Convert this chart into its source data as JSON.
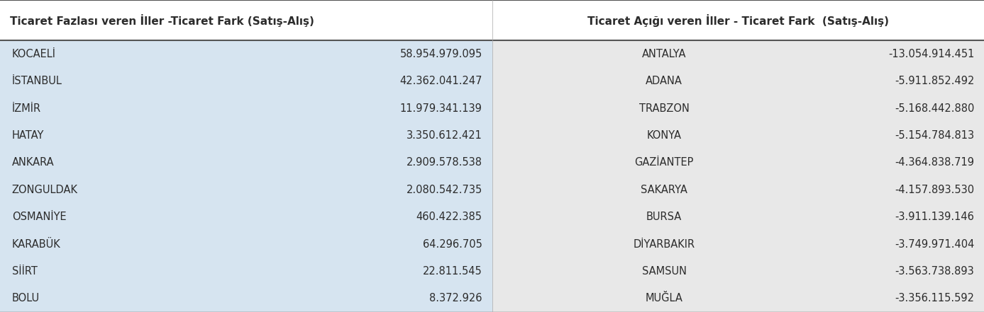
{
  "left_header": "Ticaret Fazlası veren İller -Ticaret Fark (Satış-Alış)",
  "right_header": "Ticaret Açığı veren İller - Ticaret Fark  (Satış-Alış)",
  "left_cities": [
    "KOCAELİ",
    "İSTANBUL",
    "İZMİR",
    "HATAY",
    "ANKARA",
    "ZONGULDAK",
    "OSMANİYE",
    "KARABÜK",
    "SİİRT",
    "BOLU"
  ],
  "left_values": [
    "58.954.979.095",
    "42.362.041.247",
    "11.979.341.139",
    "3.350.612.421",
    "2.909.578.538",
    "2.080.542.735",
    "460.422.385",
    "64.296.705",
    "22.811.545",
    "8.372.926"
  ],
  "right_cities": [
    "ANTALYA",
    "ADANA",
    "TRABZON",
    "KONYA",
    "GAZİANTEP",
    "SAKARYA",
    "BURSA",
    "DİYARBAKIR",
    "SAMSUN",
    "MUĞLA"
  ],
  "right_values": [
    "-13.054.914.451",
    "-5.911.852.492",
    "-5.168.442.880",
    "-5.154.784.813",
    "-4.364.838.719",
    "-4.157.893.530",
    "-3.911.139.146",
    "-3.749.971.404",
    "-3.563.738.893",
    "-3.356.115.592"
  ],
  "left_bg": "#d6e4f0",
  "right_bg": "#e8e8e8",
  "header_bg": "#ffffff",
  "text_color": "#2c2c2c",
  "header_fontsize": 11,
  "cell_fontsize": 10.5,
  "fig_width": 13.87,
  "fig_height": 4.41
}
